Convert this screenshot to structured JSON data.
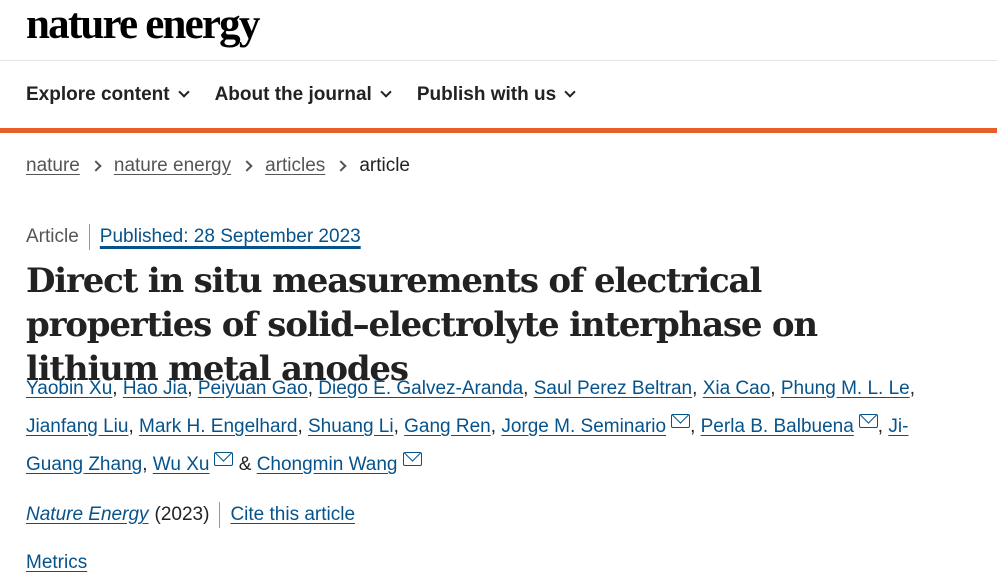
{
  "brand": {
    "logo_text": "nature energy"
  },
  "nav": {
    "items": [
      {
        "label": "Explore content"
      },
      {
        "label": "About the journal"
      },
      {
        "label": "Publish with us"
      }
    ]
  },
  "colors": {
    "accent": "#e95f2a",
    "link": "#06538c"
  },
  "breadcrumb": {
    "items": [
      "nature",
      "nature energy",
      "articles"
    ],
    "current": "article"
  },
  "article": {
    "type": "Article",
    "published": "Published: 28 September 2023",
    "title": "Direct in situ measurements of electrical properties of solid–electrolyte interphase on lithium metal anodes",
    "authors": [
      "Yaobin Xu",
      "Hao Jia",
      "Peiyuan Gao",
      "Diego E. Galvez-Aranda",
      "Saul Perez Beltran",
      "Xia Cao",
      "Phung M. L. Le",
      "Jianfang Liu",
      "Mark H. Engelhard",
      "Shuang Li",
      "Gang Ren",
      "Jorge M. Seminario",
      "Perla B. Balbuena",
      "Ji-Guang Zhang",
      "Wu Xu",
      "Chongmin Wang"
    ],
    "separators": {
      "comma": ",",
      "ampersand": "&"
    },
    "journal": "Nature Energy",
    "year": "(2023)",
    "cite_label": "Cite this article",
    "metrics_label": "Metrics"
  },
  "icons": {
    "mail": "mail-icon",
    "chevron": "chevron-down-icon"
  }
}
